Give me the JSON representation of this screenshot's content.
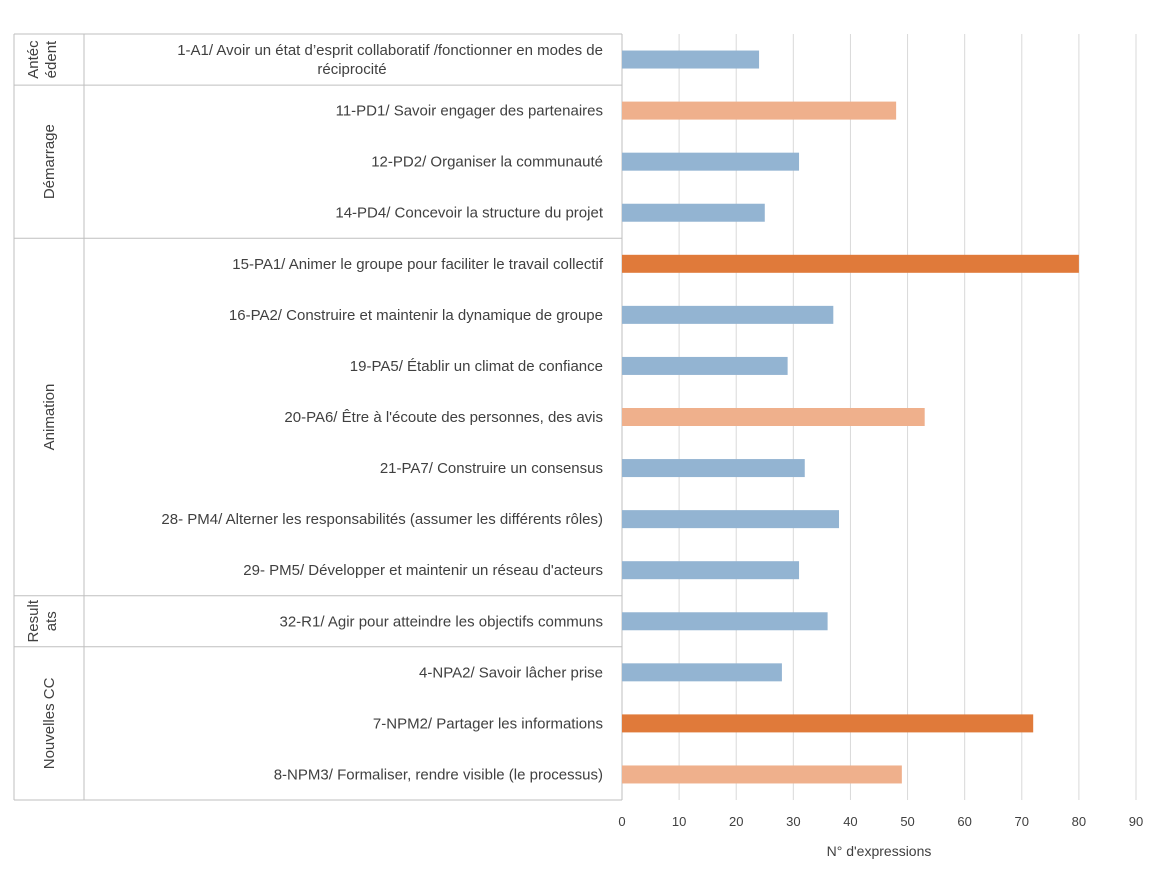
{
  "chart_data": {
    "type": "bar",
    "orientation": "horizontal",
    "xlabel": "N° d'expressions",
    "xlim": [
      0,
      90
    ],
    "xticks": [
      0,
      10,
      20,
      30,
      40,
      50,
      60,
      70,
      80,
      90
    ],
    "grid": "vertical",
    "legend": "none",
    "colors": {
      "low": "#93b4d2",
      "mid": "#efb08c",
      "high": "#e07a3a"
    },
    "groups": [
      {
        "label_lines": [
          "Antéc",
          "édent"
        ],
        "items": [
          {
            "label_lines": [
              "1-A1/ Avoir un état d’esprit collaboratif  /fonctionner en modes de",
              "réciprocité"
            ],
            "value": 24,
            "color": "low"
          }
        ]
      },
      {
        "label_lines": [
          "Démarrage"
        ],
        "items": [
          {
            "label_lines": [
              "11-PD1/ Savoir engager des partenaires"
            ],
            "value": 48,
            "color": "mid"
          },
          {
            "label_lines": [
              "12-PD2/ Organiser la communauté"
            ],
            "value": 31,
            "color": "low"
          },
          {
            "label_lines": [
              "14-PD4/ Concevoir la structure du projet"
            ],
            "value": 25,
            "color": "low"
          }
        ]
      },
      {
        "label_lines": [
          "Animation"
        ],
        "items": [
          {
            "label_lines": [
              "15-PA1/ Animer le groupe pour faciliter le travail collectif"
            ],
            "value": 80,
            "color": "high"
          },
          {
            "label_lines": [
              "16-PA2/ Construire et maintenir la dynamique de groupe"
            ],
            "value": 37,
            "color": "low"
          },
          {
            "label_lines": [
              "19-PA5/ Établir un climat de confiance"
            ],
            "value": 29,
            "color": "low"
          },
          {
            "label_lines": [
              "20-PA6/ Être à l'écoute des personnes, des avis"
            ],
            "value": 53,
            "color": "mid"
          },
          {
            "label_lines": [
              "21-PA7/ Construire un consensus"
            ],
            "value": 32,
            "color": "low"
          },
          {
            "label_lines": [
              "28- PM4/ Alterner les responsabilités (assumer les différents rôles)"
            ],
            "value": 38,
            "color": "low"
          },
          {
            "label_lines": [
              "29- PM5/ Développer et maintenir un réseau d'acteurs"
            ],
            "value": 31,
            "color": "low"
          }
        ]
      },
      {
        "label_lines": [
          "Result",
          "ats"
        ],
        "items": [
          {
            "label_lines": [
              "32-R1/ Agir pour atteindre les objectifs communs"
            ],
            "value": 36,
            "color": "low"
          }
        ]
      },
      {
        "label_lines": [
          "Nouvelles CC"
        ],
        "items": [
          {
            "label_lines": [
              "4-NPA2/ Savoir lâcher prise"
            ],
            "value": 28,
            "color": "low"
          },
          {
            "label_lines": [
              "7-NPM2/ Partager les informations"
            ],
            "value": 72,
            "color": "high"
          },
          {
            "label_lines": [
              "8-NPM3/ Formaliser, rendre visible (le processus)"
            ],
            "value": 49,
            "color": "mid"
          }
        ]
      }
    ]
  }
}
